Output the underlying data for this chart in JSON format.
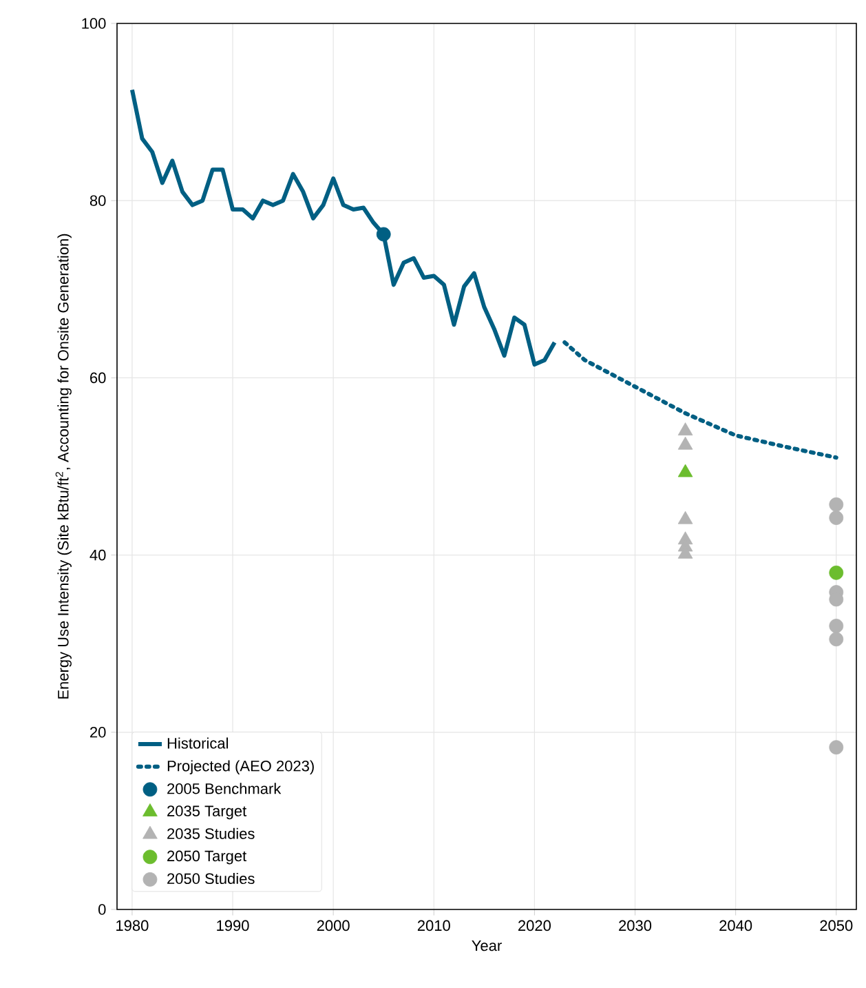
{
  "chart_data": {
    "type": "line",
    "xlabel": "Year",
    "ylabel": "Energy Use Intensity (Site kBtu/ft$^{2}$, Accounting for Onsite Generation)",
    "xlim": [
      1978.5,
      2052
    ],
    "ylim": [
      0,
      100
    ],
    "xticks": [
      1980,
      1990,
      2000,
      2010,
      2020,
      2030,
      2040,
      2050
    ],
    "yticks": [
      0,
      20,
      40,
      60,
      80,
      100
    ],
    "grid": true,
    "legend": "bottom left",
    "series": [
      {
        "name": "Historical",
        "color": "#005f83",
        "line_style": "solid",
        "marker": "none",
        "x": [
          1980,
          1981,
          1982,
          1983,
          1984,
          1985,
          1986,
          1987,
          1988,
          1989,
          1990,
          1991,
          1992,
          1993,
          1994,
          1995,
          1996,
          1997,
          1998,
          1999,
          2000,
          2001,
          2002,
          2003,
          2004,
          2005,
          2006,
          2007,
          2008,
          2009,
          2010,
          2011,
          2012,
          2013,
          2014,
          2015,
          2016,
          2017,
          2018,
          2019,
          2020,
          2021,
          2022
        ],
        "values": [
          92.5,
          87,
          85.5,
          82,
          84.5,
          81,
          79.5,
          80,
          83.5,
          83.5,
          79,
          79,
          78,
          80,
          79.5,
          80,
          83,
          81,
          78,
          79.5,
          82.5,
          79.5,
          79,
          79.2,
          77.5,
          76.2,
          70.5,
          73,
          73.5,
          71.3,
          71.5,
          70.5,
          66,
          70.3,
          71.8,
          68,
          65.5,
          62.5,
          66.8,
          66,
          61.5,
          62,
          64
        ]
      },
      {
        "name": "Projected (AEO 2023)",
        "color": "#005f83",
        "line_style": "dotted",
        "marker": "none",
        "x": [
          2023,
          2025,
          2030,
          2035,
          2040,
          2045,
          2050
        ],
        "values": [
          64,
          62,
          59,
          56,
          53.5,
          52.2,
          51
        ]
      },
      {
        "name": "2005 Benchmark",
        "type": "scatter",
        "color": "#005f83",
        "marker": "circle",
        "x": [
          2005
        ],
        "values": [
          76.2
        ]
      },
      {
        "name": "2035 Target",
        "type": "scatter",
        "color": "#6cbd2e",
        "marker": "triangle",
        "x": [
          2035
        ],
        "values": [
          49.3
        ]
      },
      {
        "name": "2035 Studies",
        "type": "scatter",
        "color": "#b3b3b3",
        "marker": "triangle",
        "x": [
          2035,
          2035,
          2035,
          2035,
          2035,
          2035
        ],
        "values": [
          54,
          52.4,
          44,
          41.7,
          40.9,
          40.1
        ]
      },
      {
        "name": "2050 Target",
        "type": "scatter",
        "color": "#6cbd2e",
        "marker": "circle",
        "x": [
          2050
        ],
        "values": [
          38
        ]
      },
      {
        "name": "2050 Studies",
        "type": "scatter",
        "color": "#b3b3b3",
        "marker": "circle",
        "x": [
          2050,
          2050,
          2050,
          2050,
          2050,
          2050,
          2050
        ],
        "values": [
          45.7,
          44.2,
          35.8,
          35,
          32,
          30.5,
          18.3
        ]
      }
    ]
  }
}
